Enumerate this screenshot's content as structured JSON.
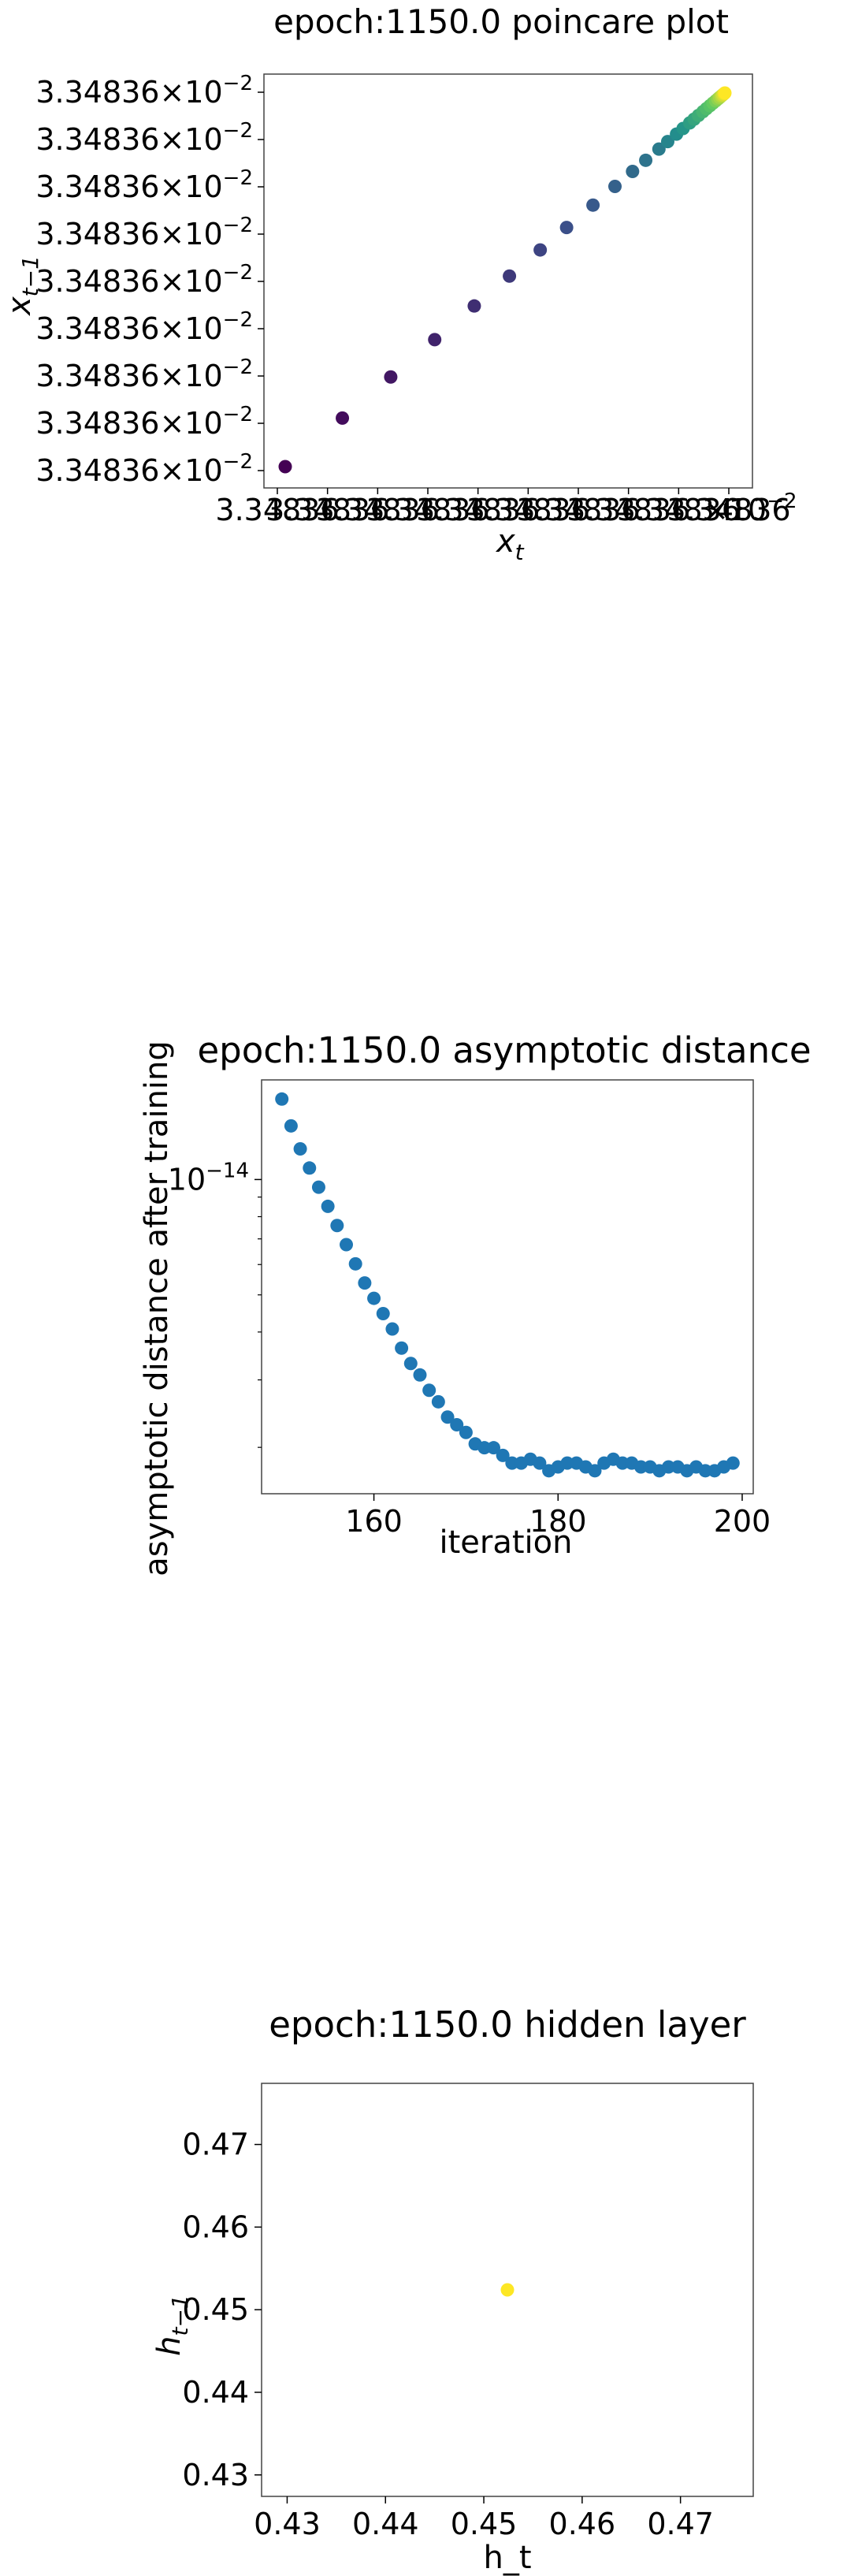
{
  "chart_data": [
    {
      "type": "scatter",
      "title": "epoch:1150.0 poincare plot",
      "xlabel": "x",
      "xlabel_sub": "t",
      "ylabel": "x",
      "ylabel_sub": "t−1",
      "ytick_labels": [
        "3.34836",
        "3.34836",
        "3.34836",
        "3.34836",
        "3.34836",
        "3.34836",
        "3.34836",
        "3.34836",
        "3.34836"
      ],
      "ytick_exponent": "×10",
      "ytick_power": "−2",
      "xtick_labels": [
        "3.34836",
        "3.34836",
        "3.34836",
        "3.34836",
        "3.34836",
        "3.34836",
        "3.34836",
        "3.34836",
        "3.34836",
        "3.34836"
      ],
      "x_offset_label": "×10",
      "x_offset_power": "−2",
      "colormap": "viridis",
      "x": [
        0.0,
        0.13,
        0.24,
        0.34,
        0.43,
        0.51,
        0.58,
        0.64,
        0.7,
        0.75,
        0.79,
        0.82,
        0.85,
        0.87,
        0.89,
        0.905,
        0.92,
        0.93,
        0.94,
        0.95,
        0.958,
        0.966,
        0.973,
        0.979,
        0.984,
        0.988,
        0.992,
        0.995,
        0.998,
        1.0
      ],
      "y": [
        0.0,
        0.13,
        0.24,
        0.34,
        0.43,
        0.51,
        0.58,
        0.64,
        0.7,
        0.75,
        0.79,
        0.82,
        0.85,
        0.87,
        0.89,
        0.905,
        0.92,
        0.93,
        0.94,
        0.95,
        0.958,
        0.966,
        0.973,
        0.979,
        0.984,
        0.988,
        0.992,
        0.995,
        0.998,
        1.0
      ]
    },
    {
      "type": "scatter",
      "title": "epoch:1150.0 asymptotic distance",
      "xlabel": "iteration",
      "ylabel": "asymptotic distance after training",
      "yscale": "log",
      "xlim": [
        147.8,
        201.2
      ],
      "ylim_log10": [
        -14.82,
        -13.74
      ],
      "xticks": [
        160,
        180,
        200
      ],
      "ytick": {
        "base": "10",
        "power": "−14",
        "log10": -14
      },
      "color": "#1f77b4",
      "x": [
        150,
        151,
        152,
        153,
        154,
        155,
        156,
        157,
        158,
        159,
        160,
        161,
        162,
        163,
        164,
        165,
        166,
        167,
        168,
        169,
        170,
        171,
        172,
        173,
        174,
        175,
        176,
        177,
        178,
        179,
        180,
        181,
        182,
        183,
        184,
        185,
        186,
        187,
        188,
        189,
        190,
        191,
        192,
        193,
        194,
        195,
        196,
        197,
        198,
        199
      ],
      "log10_y": [
        -13.79,
        -13.86,
        -13.92,
        -13.97,
        -14.02,
        -14.07,
        -14.12,
        -14.17,
        -14.22,
        -14.27,
        -14.31,
        -14.35,
        -14.39,
        -14.44,
        -14.48,
        -14.51,
        -14.55,
        -14.58,
        -14.62,
        -14.64,
        -14.66,
        -14.69,
        -14.7,
        -14.7,
        -14.72,
        -14.74,
        -14.74,
        -14.73,
        -14.74,
        -14.76,
        -14.75,
        -14.74,
        -14.74,
        -14.75,
        -14.76,
        -14.74,
        -14.73,
        -14.74,
        -14.74,
        -14.75,
        -14.75,
        -14.76,
        -14.75,
        -14.75,
        -14.76,
        -14.75,
        -14.76,
        -14.76,
        -14.75,
        -14.74
      ]
    },
    {
      "type": "scatter",
      "title": "epoch:1150.0 hidden layer",
      "xlabel": "h_t",
      "ylabel": "h",
      "ylabel_sub": "t−1",
      "xlim": [
        0.4274,
        0.4774
      ],
      "ylim": [
        0.4274,
        0.4774
      ],
      "xticks": [
        "0.43",
        "0.44",
        "0.45",
        "0.46",
        "0.47"
      ],
      "yticks": [
        "0.43",
        "0.44",
        "0.45",
        "0.46",
        "0.47"
      ],
      "color": "#fde725",
      "x": [
        0.4524
      ],
      "y": [
        0.4524
      ]
    }
  ]
}
